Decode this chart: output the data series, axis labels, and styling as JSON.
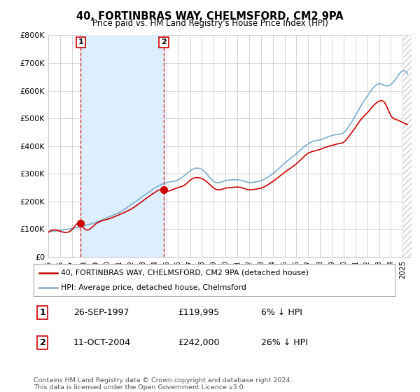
{
  "title": "40, FORTINBRAS WAY, CHELMSFORD, CM2 9PA",
  "subtitle": "Price paid vs. HM Land Registry's House Price Index (HPI)",
  "legend_label_red": "40, FORTINBRAS WAY, CHELMSFORD, CM2 9PA (detached house)",
  "legend_label_blue": "HPI: Average price, detached house, Chelmsford",
  "annotation1_label": "1",
  "annotation1_date": "26-SEP-1997",
  "annotation1_price": "£119,995",
  "annotation1_hpi": "6% ↓ HPI",
  "annotation2_label": "2",
  "annotation2_date": "11-OCT-2004",
  "annotation2_price": "£242,000",
  "annotation2_hpi": "26% ↓ HPI",
  "footer": "Contains HM Land Registry data © Crown copyright and database right 2024.\nThis data is licensed under the Open Government Licence v3.0.",
  "red_color": "#cc0000",
  "blue_color": "#7aadcf",
  "shade_color": "#ddeeff",
  "background_color": "#ffffff",
  "grid_color": "#cccccc",
  "xlim_start": 1995.0,
  "xlim_end": 2025.75,
  "ylim_min": 0,
  "ylim_max": 800000,
  "point1_x": 1997.74,
  "point1_y": 119995,
  "point2_x": 2004.78,
  "point2_y": 242000,
  "yticks": [
    0,
    100000,
    200000,
    300000,
    400000,
    500000,
    600000,
    700000,
    800000
  ],
  "ytick_labels": [
    "£0",
    "£100K",
    "£200K",
    "£300K",
    "£400K",
    "£500K",
    "£600K",
    "£700K",
    "£800K"
  ],
  "xtick_years": [
    1995,
    1996,
    1997,
    1998,
    1999,
    2000,
    2001,
    2002,
    2003,
    2004,
    2005,
    2006,
    2007,
    2008,
    2009,
    2010,
    2011,
    2012,
    2013,
    2014,
    2015,
    2016,
    2017,
    2018,
    2019,
    2020,
    2021,
    2022,
    2023,
    2024,
    2025
  ]
}
